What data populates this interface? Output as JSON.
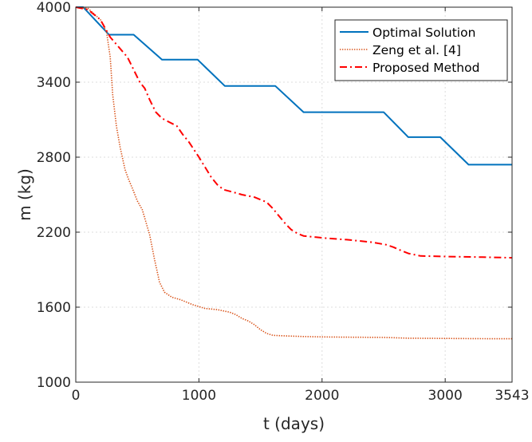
{
  "chart_data": {
    "type": "line",
    "xlabel": "t (days)",
    "ylabel": "m (kg)",
    "xlim": [
      0,
      3543
    ],
    "ylim": [
      1000,
      4000
    ],
    "xticks": [
      0,
      1000,
      2000,
      3000,
      3543
    ],
    "yticks": [
      1000,
      1600,
      2200,
      2800,
      3400,
      4000
    ],
    "xtick_labels": [
      "0",
      "1000",
      "2000",
      "3000",
      "3543"
    ],
    "ytick_labels": [
      "1000",
      "1600",
      "2200",
      "2800",
      "3400",
      "4000"
    ],
    "grid": true,
    "legend_position": "top-right",
    "series": [
      {
        "name": "Optimal Solution",
        "color": "#0072BD",
        "style": "solid",
        "x": [
          0,
          60,
          270,
          470,
          700,
          990,
          1210,
          1620,
          1850,
          2500,
          2700,
          2960,
          3190,
          3543
        ],
        "y": [
          4000,
          4000,
          3780,
          3780,
          3580,
          3580,
          3370,
          3370,
          3160,
          3160,
          2960,
          2960,
          2740,
          2740
        ]
      },
      {
        "name": "Zeng et al. [4]",
        "color": "#D95319",
        "style": "dotted",
        "x": [
          0,
          100,
          200,
          250,
          280,
          300,
          330,
          360,
          400,
          430,
          460,
          500,
          540,
          570,
          600,
          640,
          680,
          720,
          780,
          850,
          950,
          1050,
          1150,
          1250,
          1300,
          1350,
          1400,
          1450,
          1500,
          1550,
          1600,
          1700,
          1850,
          2000,
          2200,
          2500,
          2700,
          3000,
          3300,
          3543
        ],
        "y": [
          4000,
          3990,
          3900,
          3800,
          3600,
          3300,
          3050,
          2880,
          2700,
          2620,
          2550,
          2450,
          2380,
          2280,
          2180,
          1980,
          1800,
          1720,
          1680,
          1660,
          1620,
          1590,
          1580,
          1560,
          1540,
          1510,
          1490,
          1460,
          1420,
          1390,
          1375,
          1370,
          1365,
          1362,
          1360,
          1358,
          1352,
          1350,
          1348,
          1347
        ]
      },
      {
        "name": "Proposed Method",
        "color": "#FF0000",
        "style": "dashdot",
        "x": [
          0,
          100,
          200,
          280,
          350,
          420,
          480,
          520,
          560,
          600,
          650,
          700,
          760,
          820,
          870,
          920,
          960,
          1000,
          1050,
          1100,
          1150,
          1200,
          1280,
          1350,
          1450,
          1550,
          1600,
          1650,
          1700,
          1750,
          1800,
          1850,
          1950,
          2050,
          2200,
          2400,
          2520,
          2580,
          2650,
          2700,
          2800,
          3000,
          3300,
          3543
        ],
        "y": [
          4000,
          3980,
          3900,
          3760,
          3680,
          3600,
          3480,
          3400,
          3350,
          3260,
          3160,
          3110,
          3080,
          3050,
          2980,
          2920,
          2860,
          2800,
          2720,
          2640,
          2580,
          2540,
          2520,
          2500,
          2480,
          2440,
          2390,
          2330,
          2270,
          2220,
          2190,
          2170,
          2160,
          2150,
          2140,
          2120,
          2100,
          2080,
          2050,
          2030,
          2010,
          2005,
          2000,
          1995
        ]
      }
    ]
  }
}
